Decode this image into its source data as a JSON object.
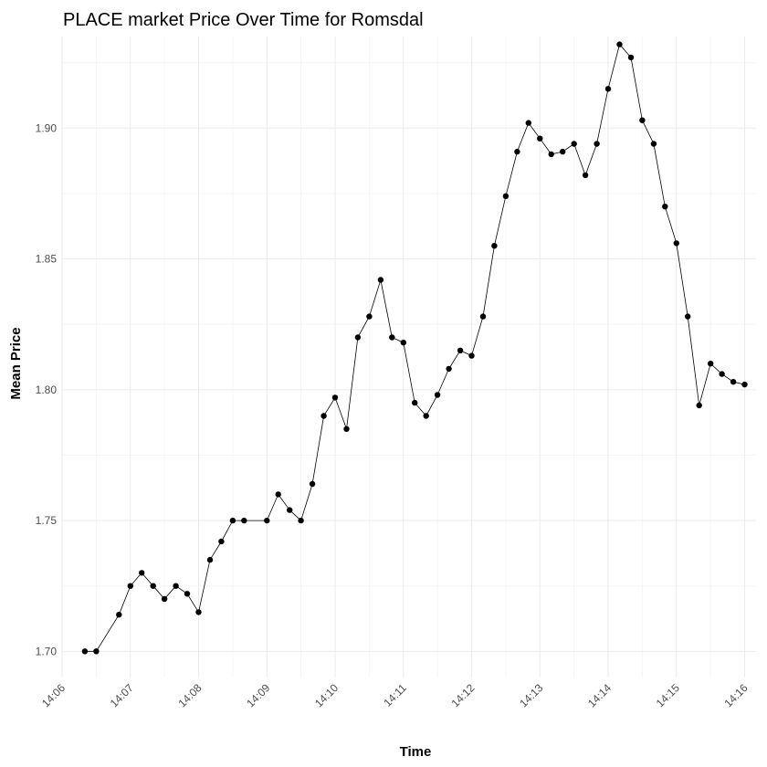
{
  "chart_data": {
    "type": "line",
    "title": "PLACE market Price Over Time for Romsdal",
    "xlabel": "Time",
    "ylabel": "Mean Price",
    "x_unit": "time of day (HH:MM:SS)",
    "xlim": [
      "14:06:00",
      "14:16:10"
    ],
    "ylim": [
      1.69,
      1.935
    ],
    "x_ticks": [
      "14:06",
      "14:07",
      "14:08",
      "14:09",
      "14:10",
      "14:11",
      "14:12",
      "14:13",
      "14:14",
      "14:15",
      "14:16"
    ],
    "y_ticks": [
      "1.70",
      "1.75",
      "1.80",
      "1.85",
      "1.90"
    ],
    "grid": true,
    "legend": "none",
    "line_color": "#000000",
    "point_color": "#000000",
    "series": [
      {
        "x": [
          "14:06:20",
          "14:06:30",
          "14:06:50",
          "14:07:00",
          "14:07:10",
          "14:07:20",
          "14:07:30",
          "14:07:40",
          "14:07:50",
          "14:08:00",
          "14:08:10",
          "14:08:20",
          "14:08:30",
          "14:08:40",
          "14:09:00",
          "14:09:10",
          "14:09:20",
          "14:09:30",
          "14:09:40",
          "14:09:50",
          "14:10:00",
          "14:10:10",
          "14:10:20",
          "14:10:30",
          "14:10:40",
          "14:10:50",
          "14:11:00",
          "14:11:10",
          "14:11:20",
          "14:11:30",
          "14:11:40",
          "14:11:50",
          "14:12:00",
          "14:12:10",
          "14:12:20",
          "14:12:30",
          "14:12:40",
          "14:12:50",
          "14:13:00",
          "14:13:10",
          "14:13:20",
          "14:13:30",
          "14:13:40",
          "14:13:50",
          "14:14:00",
          "14:14:10",
          "14:14:20",
          "14:14:30",
          "14:14:40",
          "14:14:50",
          "14:15:00",
          "14:15:10",
          "14:15:20",
          "14:15:30",
          "14:15:40",
          "14:15:50",
          "14:16:00"
        ],
        "y": [
          1.7,
          1.7,
          1.714,
          1.725,
          1.73,
          1.725,
          1.72,
          1.725,
          1.722,
          1.715,
          1.735,
          1.742,
          1.75,
          1.75,
          1.75,
          1.76,
          1.754,
          1.75,
          1.764,
          1.79,
          1.797,
          1.785,
          1.82,
          1.828,
          1.842,
          1.82,
          1.818,
          1.795,
          1.79,
          1.798,
          1.808,
          1.815,
          1.813,
          1.828,
          1.855,
          1.874,
          1.891,
          1.902,
          1.896,
          1.89,
          1.891,
          1.894,
          1.882,
          1.894,
          1.915,
          1.932,
          1.927,
          1.903,
          1.894,
          1.87,
          1.856,
          1.828,
          1.794,
          1.81,
          1.806,
          1.803,
          1.802
        ]
      }
    ]
  }
}
